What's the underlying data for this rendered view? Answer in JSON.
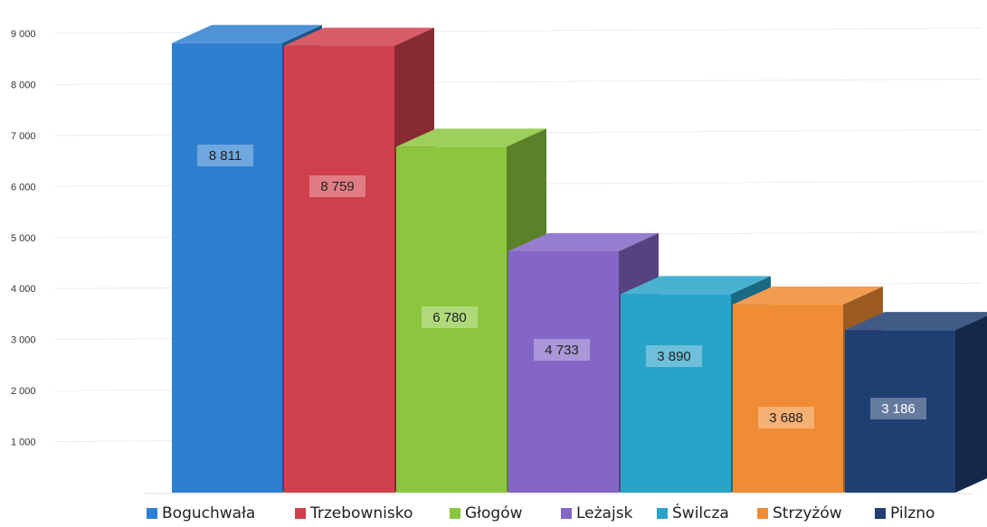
{
  "chart_data": {
    "type": "bar",
    "title": "",
    "xlabel": "",
    "ylabel": "",
    "ylim": [
      0,
      9000
    ],
    "yticks": [
      {
        "value": 1000,
        "label": "1 000"
      },
      {
        "value": 2000,
        "label": "2 000"
      },
      {
        "value": 3000,
        "label": "3 000"
      },
      {
        "value": 4000,
        "label": "4 000"
      },
      {
        "value": 5000,
        "label": "5 000"
      },
      {
        "value": 6000,
        "label": "6 000"
      },
      {
        "value": 7000,
        "label": "7 000"
      },
      {
        "value": 8000,
        "label": "8 000"
      },
      {
        "value": 9000,
        "label": "9 000"
      }
    ],
    "grid": true,
    "legend": "bottom",
    "categories": [
      "Boguchwała",
      "Trzebownisko",
      "Głogów",
      "Leżajsk",
      "Świlcza",
      "Strzyżów",
      "Pilzno"
    ],
    "values": [
      8811,
      8759,
      6780,
      4733,
      3890,
      3688,
      3186
    ],
    "data_labels": [
      "8 811",
      "8 759",
      "6 780",
      "4 733",
      "3 890",
      "3 688",
      "3 186"
    ],
    "colors": [
      "#2f7fd0",
      "#d1404d",
      "#8cc63f",
      "#8366c6",
      "#2aa3c9",
      "#f08c33",
      "#1f3e72"
    ]
  }
}
